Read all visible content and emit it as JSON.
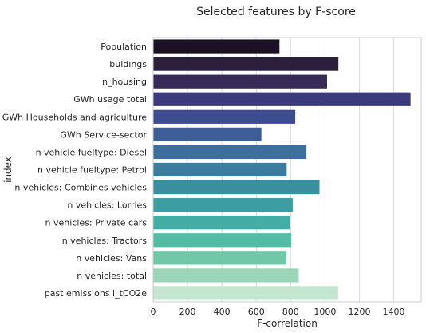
{
  "chart_data": {
    "type": "bar",
    "orientation": "horizontal",
    "title": "Selected features by F-score",
    "xlabel": "F-correlation",
    "ylabel": "index",
    "xlim": [
      0,
      1560
    ],
    "xticks": [
      0,
      200,
      400,
      600,
      800,
      1000,
      1200,
      1400
    ],
    "grid": true,
    "categories": [
      "Population",
      "buldings",
      "n_housing",
      "GWh usage total",
      "GWh Households and agriculture",
      "GWh Service-sector",
      "n vehicle fueltype: Diesel",
      "n vehicle fueltype: Petrol",
      "n vehicles: Combines vehicles",
      "n vehicles: Lorries",
      "n vehicles: Private cars",
      "n vehicles: Tractors",
      "n vehicles: Vans",
      "n vehicles: total",
      "past emissions l_tCO2e"
    ],
    "values": [
      735,
      1078,
      1012,
      1498,
      827,
      630,
      892,
      777,
      968,
      812,
      795,
      803,
      775,
      847,
      1077
    ],
    "colors": [
      "#1c1124",
      "#2c1e3d",
      "#372a56",
      "#3b3a7a",
      "#3d4c8f",
      "#3f5e98",
      "#3e6e9b",
      "#3d7c9d",
      "#3a8ea0",
      "#3c9ea2",
      "#42aea5",
      "#53bca5",
      "#6fc9a8",
      "#9ad6b7",
      "#c4e5cf"
    ]
  }
}
